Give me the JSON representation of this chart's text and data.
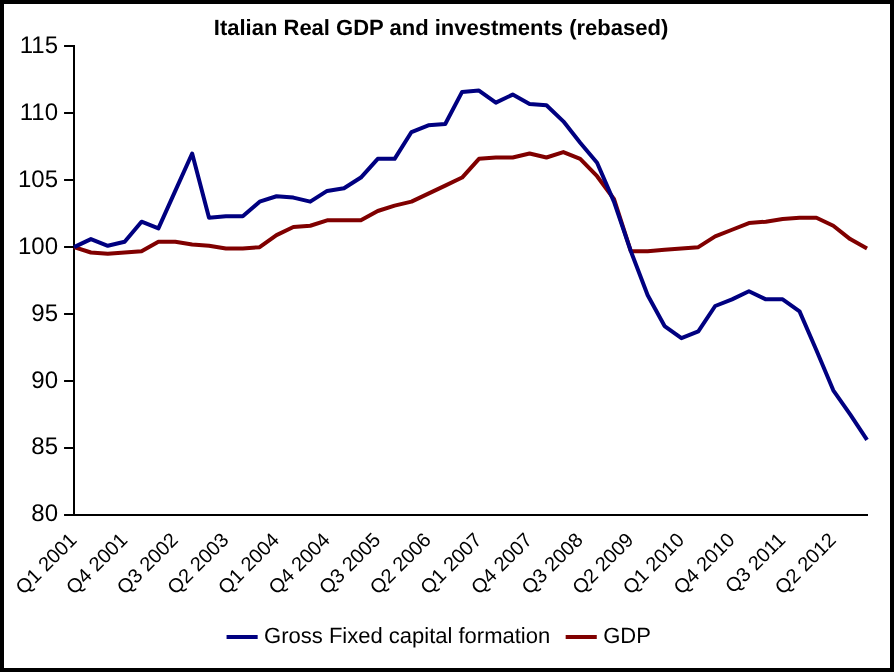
{
  "chart_data": {
    "type": "line",
    "title": "Italian Real GDP and investments (rebased)",
    "categories": [
      "Q1 2001",
      null,
      null,
      "Q4 2001",
      null,
      null,
      "Q3 2002",
      null,
      null,
      "Q2 2003",
      null,
      null,
      "Q1 2004",
      null,
      null,
      "Q4 2004",
      null,
      null,
      "Q3 2005",
      null,
      null,
      "Q2 2006",
      null,
      null,
      "Q1 2007",
      null,
      null,
      "Q4 2007",
      null,
      null,
      "Q3 2008",
      null,
      null,
      "Q2 2009",
      null,
      null,
      "Q1 2010",
      null,
      null,
      "Q4 2010",
      null,
      null,
      "Q3 2011",
      null,
      null,
      "Q2 2012",
      null,
      null
    ],
    "series": [
      {
        "name": "Gross Fixed capital formation",
        "color": "#000080",
        "values": [
          100,
          100.6,
          100.1,
          100.4,
          101.9,
          101.4,
          104.2,
          107,
          102.2,
          102.3,
          102.3,
          103.4,
          103.8,
          103.7,
          103.4,
          104.2,
          104.4,
          105.2,
          106.6,
          106.6,
          108.6,
          109.1,
          109.2,
          111.6,
          111.7,
          110.8,
          111.4,
          110.7,
          110.6,
          109.4,
          107.8,
          106.3,
          103.4,
          99.7,
          96.4,
          94.1,
          93.2,
          93.7,
          95.6,
          96.1,
          96.7,
          96.1,
          96.1,
          95.2,
          92.3,
          89.3,
          87.5,
          85.6
        ]
      },
      {
        "name": "GDP",
        "color": "#800000",
        "values": [
          100,
          99.6,
          99.5,
          99.6,
          99.7,
          100.4,
          100.4,
          100.2,
          100.1,
          99.9,
          99.9,
          100,
          100.9,
          101.5,
          101.6,
          102,
          102,
          102,
          102.7,
          103.1,
          103.4,
          104,
          104.6,
          105.2,
          106.6,
          106.7,
          106.7,
          107,
          106.7,
          107.1,
          106.6,
          105.3,
          103.6,
          99.7,
          99.7,
          99.8,
          99.9,
          100,
          100.8,
          101.3,
          101.8,
          101.9,
          102.1,
          102.2,
          102.2,
          101.6,
          100.6,
          99.9
        ]
      }
    ],
    "ylim": [
      80,
      115
    ],
    "yticks": [
      80,
      85,
      90,
      95,
      100,
      105,
      110,
      115
    ],
    "grid": false,
    "legend": "bottom",
    "marker": "none",
    "line_style": "solid"
  }
}
